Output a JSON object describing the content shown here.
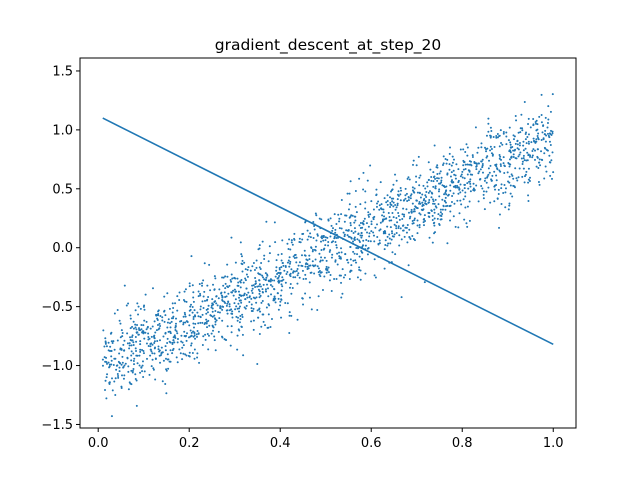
{
  "chart_data": {
    "type": "scatter",
    "title": "gradient_descent_at_step_20",
    "xlabel": "",
    "ylabel": "",
    "xlim": [
      -0.04,
      1.05
    ],
    "ylim": [
      -1.53,
      1.61
    ],
    "xticks": [
      0.0,
      0.2,
      0.4,
      0.6,
      0.8,
      1.0
    ],
    "xtick_labels": [
      "0.0",
      "0.2",
      "0.4",
      "0.6",
      "0.8",
      "1.0"
    ],
    "yticks": [
      -1.5,
      -1.0,
      -0.5,
      0.0,
      0.5,
      1.0,
      1.5
    ],
    "ytick_labels": [
      "−1.5",
      "−1.0",
      "−0.5",
      "0.0",
      "0.5",
      "1.0",
      "1.5"
    ],
    "grid": false,
    "colors": {
      "series": "#1f77b4",
      "axes": "#000000",
      "background": "#ffffff"
    },
    "series": [
      {
        "kind": "scatter",
        "point_count": 2000,
        "trend": {
          "x": [
            0.01,
            1.0
          ],
          "y": [
            -1.0,
            0.95
          ]
        },
        "noise_sd": 0.17,
        "x_range": [
          0.01,
          1.0
        ]
      },
      {
        "kind": "line",
        "x": [
          0.01,
          1.0
        ],
        "y": [
          1.1,
          -0.82
        ]
      }
    ]
  }
}
